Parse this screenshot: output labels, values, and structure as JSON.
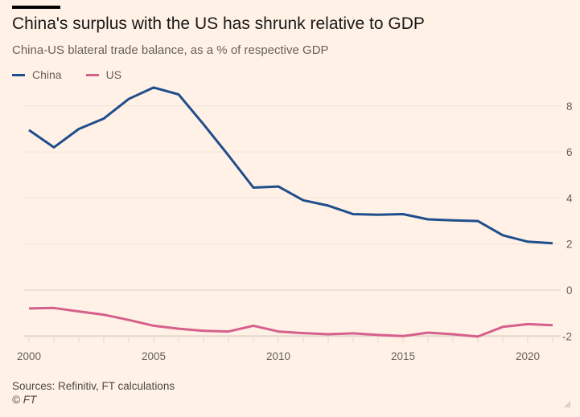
{
  "header": {
    "title": "China's surplus with the US has shrunk relative to GDP",
    "subtitle": "China-US blateral trade balance, as a % of respective GDP"
  },
  "footer": {
    "source": "Sources: Refinitiv, FT calculations",
    "copyright": "© FT"
  },
  "chart_data": {
    "type": "line",
    "title": "China's surplus with the US has shrunk relative to GDP",
    "subtitle": "China-US blateral trade balance, as a % of respective GDP",
    "xlabel": "",
    "ylabel": "",
    "x": [
      2000,
      2001,
      2002,
      2003,
      2004,
      2005,
      2006,
      2007,
      2008,
      2009,
      2010,
      2011,
      2012,
      2013,
      2014,
      2015,
      2016,
      2017,
      2018,
      2019,
      2020,
      2021
    ],
    "xlim": [
      2000,
      2021
    ],
    "ylim": [
      -2,
      8
    ],
    "x_ticks": [
      2000,
      2005,
      2010,
      2015,
      2020
    ],
    "y_ticks": [
      -2,
      0,
      2,
      4,
      6,
      8
    ],
    "y_axis_side": "right",
    "grid": true,
    "legend_position": "top-left",
    "series": [
      {
        "name": "China",
        "color": "#1f4e8c",
        "values": [
          6.95,
          6.2,
          7.0,
          7.45,
          8.3,
          8.8,
          8.5,
          7.2,
          5.85,
          4.45,
          4.5,
          3.9,
          3.67,
          3.3,
          3.27,
          3.3,
          3.07,
          3.03,
          3.0,
          2.38,
          2.1,
          2.03
        ]
      },
      {
        "name": "US",
        "color": "#d6608c",
        "values": [
          -0.8,
          -0.78,
          -0.93,
          -1.07,
          -1.3,
          -1.55,
          -1.68,
          -1.77,
          -1.8,
          -1.55,
          -1.8,
          -1.87,
          -1.92,
          -1.88,
          -1.95,
          -2.0,
          -1.85,
          -1.92,
          -2.02,
          -1.6,
          -1.48,
          -1.53
        ]
      }
    ]
  }
}
